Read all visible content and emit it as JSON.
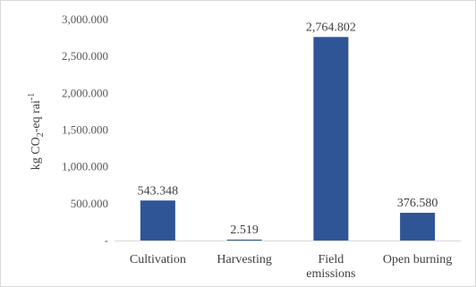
{
  "chart_data": {
    "type": "bar",
    "categories": [
      "Cultivation",
      "Harvesting",
      "Field emissions",
      "Open burning"
    ],
    "category_lines": [
      [
        "Cultivation"
      ],
      [
        "Harvesting"
      ],
      [
        "Field",
        "emissions"
      ],
      [
        "Open burning"
      ]
    ],
    "values": [
      543.348,
      2.519,
      2764.802,
      376.58
    ],
    "data_labels": [
      "543.348",
      "2.519",
      "2,764.802",
      "376.580"
    ],
    "title": "",
    "xlabel": "",
    "ylabel_parts": {
      "a": "kg CO",
      "sub": "2",
      "b": "-eq rai",
      "sup": "-1"
    },
    "ylim": [
      0,
      3000
    ],
    "yticks": [
      0,
      500,
      1000,
      1500,
      2000,
      2500,
      3000
    ],
    "ytick_labels": [
      "-",
      "500.000",
      "1,000.000",
      "1,500.000",
      "2,000.000",
      "2,500.000",
      "3,000.000"
    ],
    "grid": false,
    "bar_color": "#2f5597"
  }
}
